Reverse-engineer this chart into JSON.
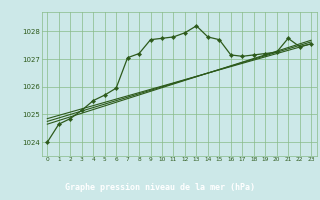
{
  "bg_color": "#cce8e8",
  "plot_bg_color": "#cce8e8",
  "footer_color": "#2d5a1b",
  "grid_color": "#88bb88",
  "line_color": "#2d5a1b",
  "marker_color": "#2d5a1b",
  "text_color": "#2d5a1b",
  "xlabel": "Graphe pression niveau de la mer (hPa)",
  "ylim": [
    1023.5,
    1028.7
  ],
  "xlim": [
    -0.5,
    23.5
  ],
  "yticks": [
    1024,
    1025,
    1026,
    1027,
    1028
  ],
  "xticks": [
    0,
    1,
    2,
    3,
    4,
    5,
    6,
    7,
    8,
    9,
    10,
    11,
    12,
    13,
    14,
    15,
    16,
    17,
    18,
    19,
    20,
    21,
    22,
    23
  ],
  "main_x": [
    0,
    1,
    2,
    3,
    4,
    5,
    6,
    7,
    8,
    9,
    10,
    11,
    12,
    13,
    14,
    15,
    16,
    17,
    18,
    19,
    20,
    21,
    22,
    23
  ],
  "main_y": [
    1024.0,
    1024.65,
    1024.85,
    1025.15,
    1025.5,
    1025.7,
    1025.95,
    1027.05,
    1027.2,
    1027.7,
    1027.75,
    1027.8,
    1027.95,
    1028.2,
    1027.8,
    1027.7,
    1027.15,
    1027.1,
    1027.15,
    1027.2,
    1027.25,
    1027.75,
    1027.45,
    1027.55
  ],
  "trend_lines": [
    {
      "x": [
        0,
        23
      ],
      "y": [
        1024.85,
        1027.55
      ]
    },
    {
      "x": [
        0,
        23
      ],
      "y": [
        1024.75,
        1027.62
      ]
    },
    {
      "x": [
        0,
        23
      ],
      "y": [
        1024.65,
        1027.68
      ]
    }
  ]
}
